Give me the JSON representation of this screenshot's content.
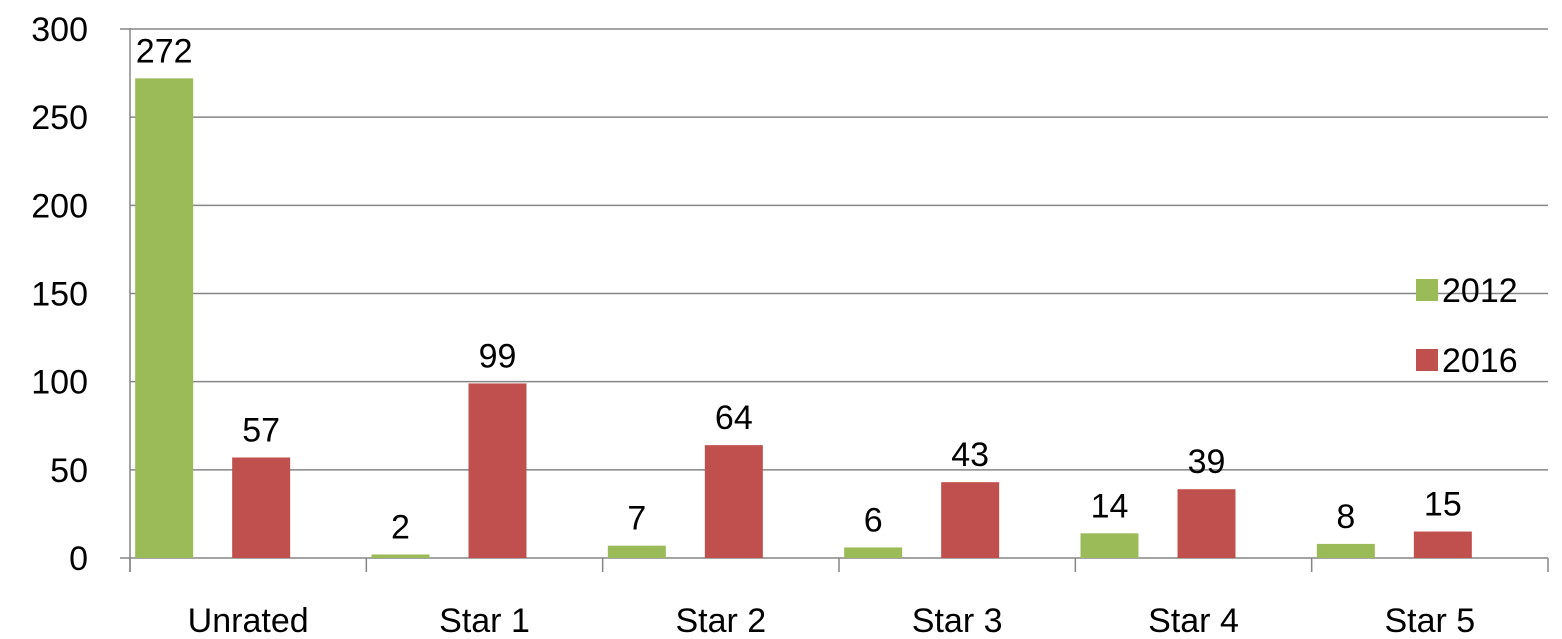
{
  "chart_data": {
    "type": "bar",
    "categories": [
      "Unrated",
      "Star 1",
      "Star 2",
      "Star 3",
      "Star 4",
      "Star 5"
    ],
    "series": [
      {
        "name": "2012",
        "values": [
          272,
          2,
          7,
          6,
          14,
          8
        ],
        "color": "#9BBB59"
      },
      {
        "name": "2016",
        "values": [
          57,
          99,
          64,
          43,
          39,
          15
        ],
        "color": "#C0504D"
      }
    ],
    "title": "",
    "xlabel": "",
    "ylabel": "",
    "ylim": [
      0,
      300
    ],
    "yticks": [
      0,
      50,
      100,
      150,
      200,
      250,
      300
    ],
    "grid": true,
    "legend_position": "right",
    "data_labels": true
  }
}
